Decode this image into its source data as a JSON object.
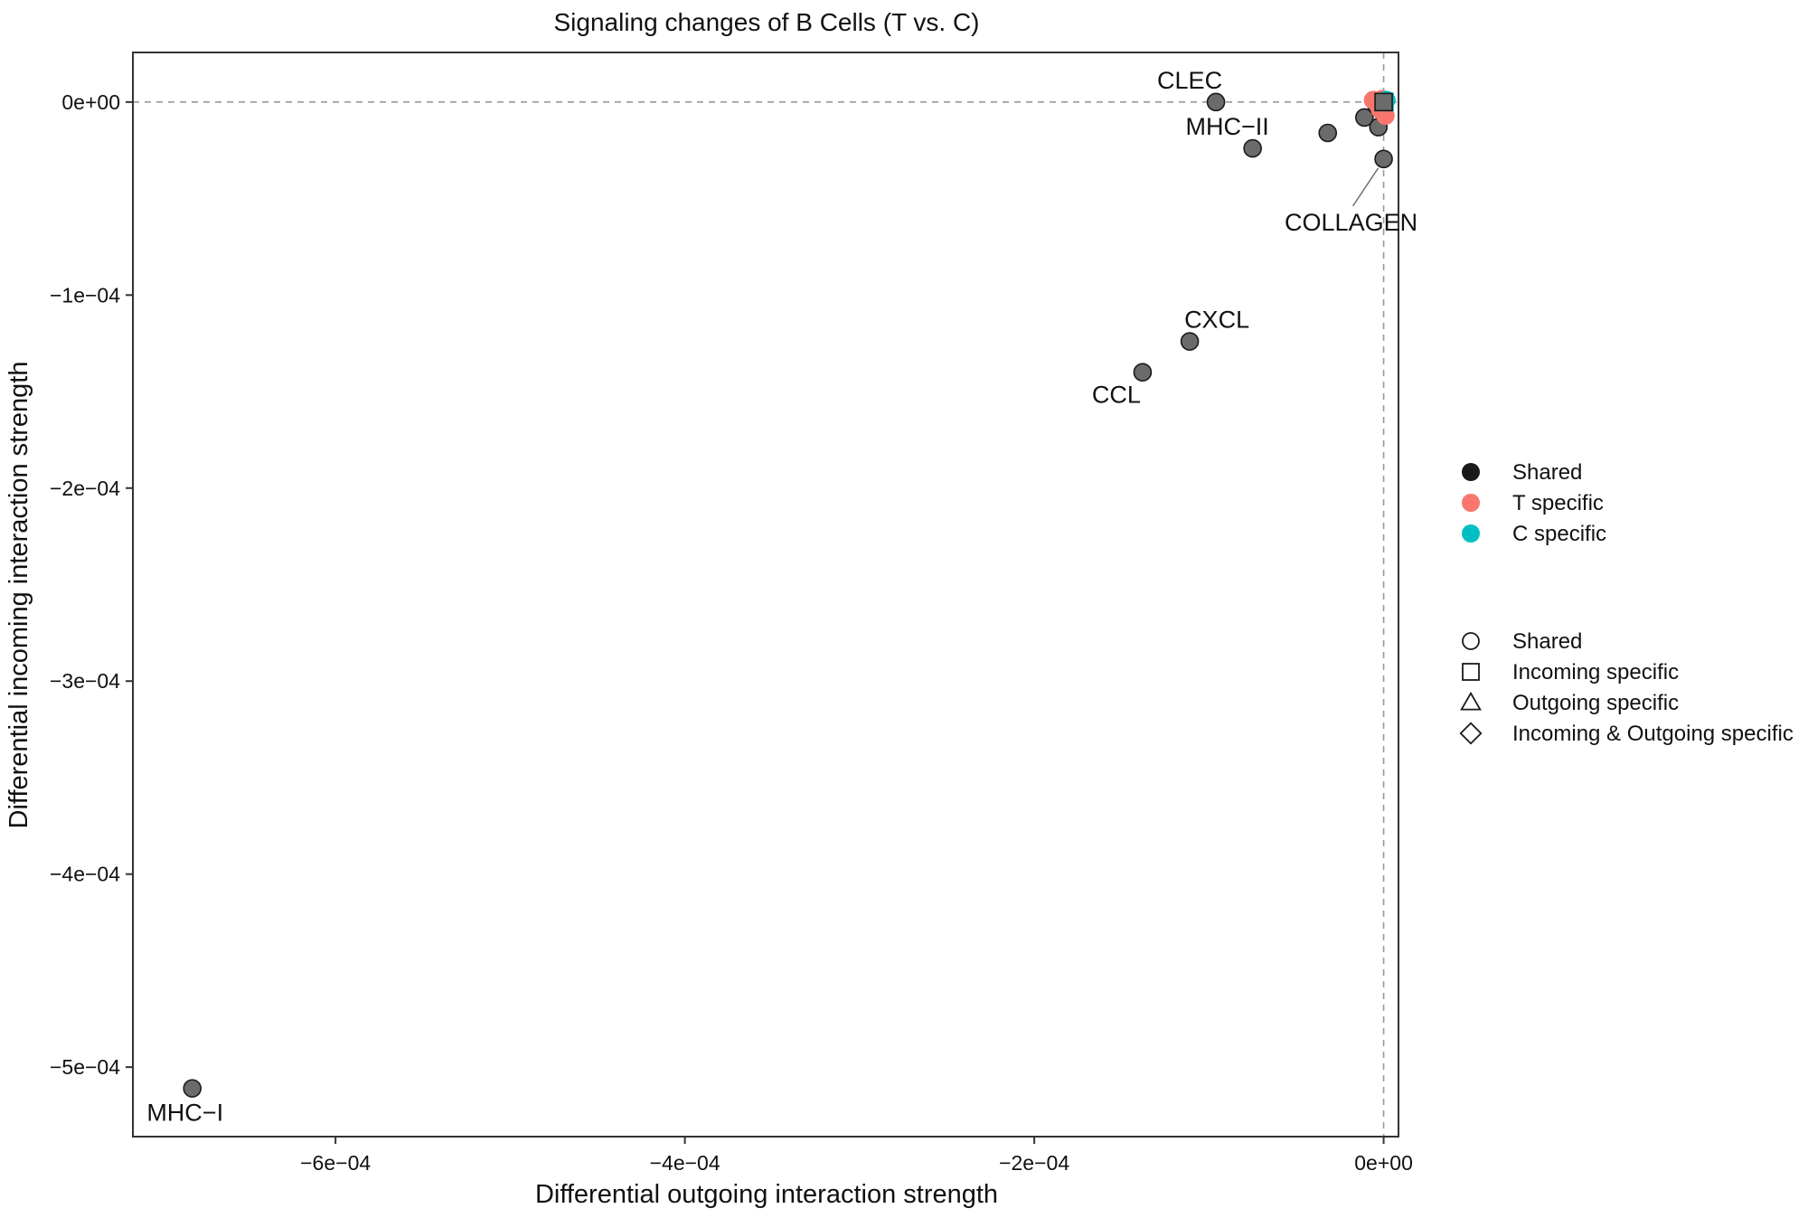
{
  "chart_data": {
    "type": "scatter",
    "title": "Signaling changes of B Cells (T vs. C)",
    "xlabel": "Differential outgoing interaction strength",
    "ylabel": "Differential incoming interaction strength",
    "xlim": [
      -0.000716,
      8.5e-06
    ],
    "ylim": [
      -0.000536,
      2.57e-05
    ],
    "x_ticks": [
      {
        "value": -0.0006,
        "label": "−6e−04"
      },
      {
        "value": -0.0004,
        "label": "−4e−04"
      },
      {
        "value": -0.0002,
        "label": "−2e−04"
      },
      {
        "value": 0,
        "label": "0e+00"
      }
    ],
    "y_ticks": [
      {
        "value": 0,
        "label": "0e+00"
      },
      {
        "value": -0.0001,
        "label": "−1e−04"
      },
      {
        "value": -0.0002,
        "label": "−2e−04"
      },
      {
        "value": -0.0003,
        "label": "−3e−04"
      },
      {
        "value": -0.0004,
        "label": "−4e−04"
      },
      {
        "value": -0.0005,
        "label": "−5e−04"
      }
    ],
    "reference_lines": {
      "x": 0,
      "y": 0,
      "style": "dashed"
    },
    "grid": false,
    "points": [
      {
        "label": "MHC−I",
        "x": -0.000682,
        "y": -0.000511,
        "group": "Shared",
        "shape": "Shared"
      },
      {
        "label": "CCL",
        "x": -0.000138,
        "y": -0.00014,
        "group": "Shared",
        "shape": "Shared"
      },
      {
        "label": "CXCL",
        "x": -0.000111,
        "y": -0.000124,
        "group": "Shared",
        "shape": "Shared"
      },
      {
        "label": "CLEC",
        "x": -9.6e-05,
        "y": 0.0,
        "group": "Shared",
        "shape": "Shared"
      },
      {
        "label": "MHC−II",
        "x": -7.5e-05,
        "y": -2.4e-05,
        "group": "Shared",
        "shape": "Shared"
      },
      {
        "label": "",
        "x": -3.2e-05,
        "y": -1.6e-05,
        "group": "Shared",
        "shape": "Shared"
      },
      {
        "label": "",
        "x": -1.1e-05,
        "y": -8e-06,
        "group": "Shared",
        "shape": "Shared"
      },
      {
        "label": "",
        "x": -3e-06,
        "y": -1.3e-05,
        "group": "Shared",
        "shape": "Shared"
      },
      {
        "label": "COLLAGEN",
        "x": 0.0,
        "y": -2.95e-05,
        "group": "Shared",
        "shape": "Shared"
      },
      {
        "label": "",
        "x": -4e-06,
        "y": -2e-06,
        "group": "Shared",
        "shape": "Shared"
      },
      {
        "label": "",
        "x": -6e-06,
        "y": 1e-06,
        "group": "T specific",
        "shape": "Shared"
      },
      {
        "label": "",
        "x": -2e-06,
        "y": -4e-06,
        "group": "T specific",
        "shape": "Shared"
      },
      {
        "label": "",
        "x": 1e-06,
        "y": -7e-06,
        "group": "T specific",
        "shape": "Shared"
      },
      {
        "label": "",
        "x": -1e-06,
        "y": 1.5e-06,
        "group": "T specific",
        "shape": "Shared"
      },
      {
        "label": "",
        "x": 5e-07,
        "y": 0.0,
        "group": "C specific",
        "shape": "Incoming specific"
      },
      {
        "label": "",
        "x": 1.5e-06,
        "y": 1e-06,
        "group": "C specific",
        "shape": "Shared"
      },
      {
        "label": "",
        "x": 0.0,
        "y": 0.0,
        "group": "Shared",
        "shape": "Incoming specific"
      }
    ],
    "legend_color": {
      "placement": "right",
      "items": [
        {
          "name": "Shared",
          "color": "#1a1a1a"
        },
        {
          "name": "T specific",
          "color": "#F8766D"
        },
        {
          "name": "C specific",
          "color": "#00BFC4"
        }
      ]
    },
    "legend_shape": {
      "placement": "right",
      "items": [
        {
          "name": "Shared",
          "shape": "circle"
        },
        {
          "name": "Incoming specific",
          "shape": "square"
        },
        {
          "name": "Outgoing specific",
          "shape": "triangle"
        },
        {
          "name": "Incoming & Outgoing specific",
          "shape": "diamond"
        }
      ]
    },
    "colors": {
      "point_fill_shared": "#6b6b6b",
      "point_stroke": "#1a1a1a",
      "axis": "#333333",
      "reference_line": "#999999"
    }
  }
}
